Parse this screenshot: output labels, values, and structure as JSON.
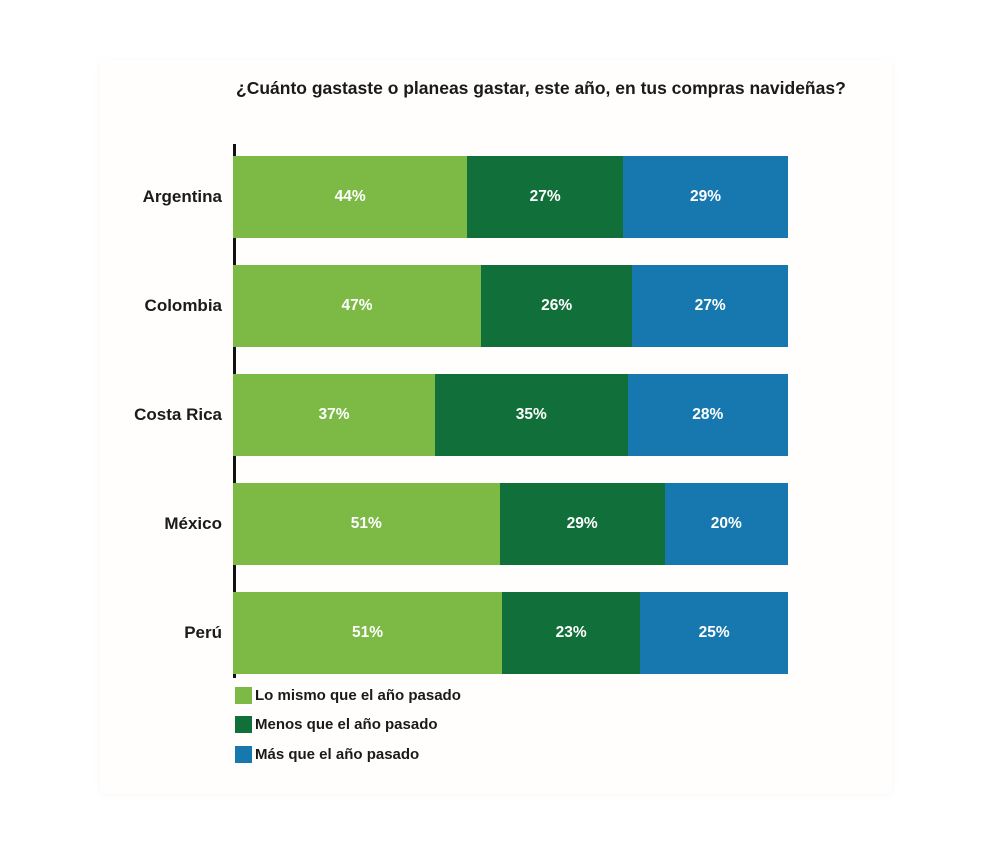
{
  "title": "¿Cuánto gastaste o planeas gastar, este año, en tus compras navideñas?",
  "colors": {
    "same_as_last_year": "#7CBA45",
    "less_than_last_year": "#116F39",
    "more_than_last_year": "#1778B0",
    "axis": "#111111",
    "category_label": "#1b1b1b",
    "value_label": "#ffffff",
    "background": "#ffffff"
  },
  "chart_data": {
    "type": "bar",
    "orientation": "horizontal",
    "stacked": true,
    "normalized_to_100": true,
    "title": "¿Cuánto gastaste o planeas gastar, este año, en tus compras navideñas?",
    "categories": [
      "Argentina",
      "Colombia",
      "Costa Rica",
      "México",
      "Perú"
    ],
    "series": [
      {
        "name": "Lo mismo que el año pasado",
        "color": "#7CBA45",
        "values": [
          44,
          47,
          37,
          51,
          51
        ]
      },
      {
        "name": "Menos que el año pasado",
        "color": "#116F39",
        "values": [
          27,
          26,
          35,
          29,
          23
        ]
      },
      {
        "name": "Más que el año pasado",
        "color": "#1778B0",
        "values": [
          29,
          27,
          28,
          20,
          25
        ]
      }
    ],
    "value_label_suffix": "%",
    "xlim": [
      0,
      100
    ],
    "grid": false,
    "legend_position": "bottom-left",
    "value_labels_shown": true
  }
}
